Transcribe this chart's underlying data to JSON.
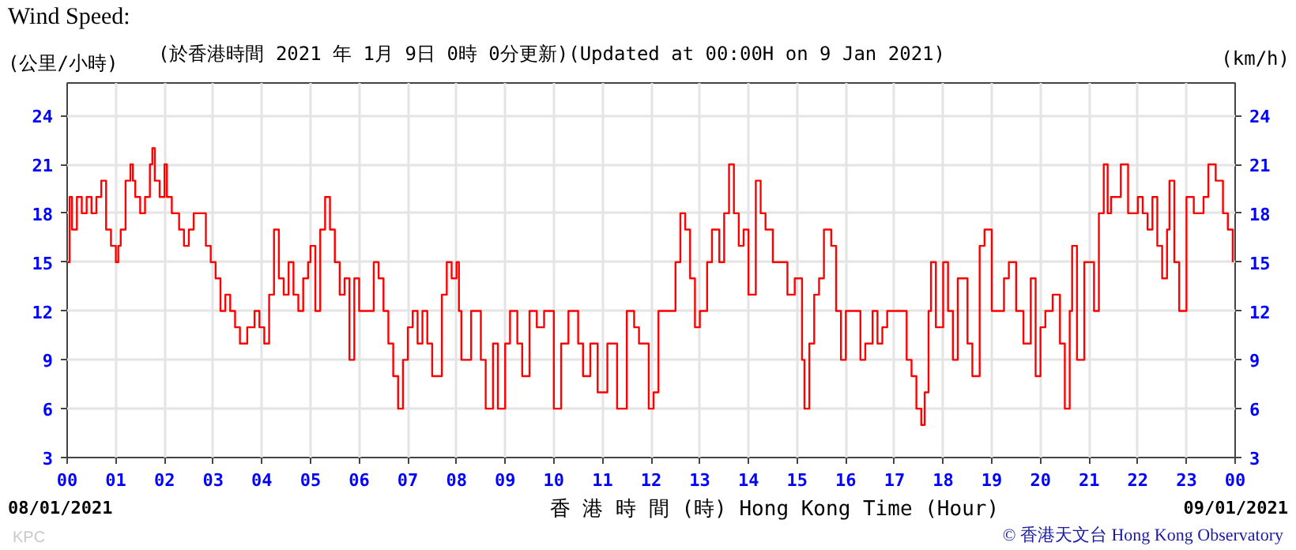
{
  "chart_data": {
    "type": "step",
    "title": "Wind Speed:",
    "subtitle": "(於香港時間 2021 年 1月 9日 0時 0分更新)(Updated at 00:00H on 9 Jan 2021)",
    "ylabel": "(公里/小時)",
    "y2label": "(km/h)",
    "xlabel": "香 港 時 間 (時) Hong Kong Time (Hour)",
    "annotations": [
      "08/01/2021",
      "09/01/2021",
      "© 香港天文台 Hong Kong Observatory",
      "KPC"
    ],
    "x": [
      0,
      0.05,
      0.1,
      0.2,
      0.3,
      0.4,
      0.5,
      0.6,
      0.7,
      0.8,
      0.9,
      1.0,
      1.05,
      1.1,
      1.2,
      1.3,
      1.35,
      1.4,
      1.5,
      1.6,
      1.7,
      1.75,
      1.8,
      1.9,
      2.0,
      2.05,
      2.15,
      2.3,
      2.4,
      2.5,
      2.6,
      2.7,
      2.85,
      2.95,
      3.05,
      3.15,
      3.25,
      3.35,
      3.45,
      3.55,
      3.7,
      3.85,
      3.95,
      4.05,
      4.15,
      4.25,
      4.35,
      4.45,
      4.55,
      4.65,
      4.75,
      4.85,
      4.95,
      5.0,
      5.1,
      5.2,
      5.3,
      5.4,
      5.5,
      5.6,
      5.7,
      5.8,
      5.9,
      6.0,
      6.1,
      6.3,
      6.4,
      6.5,
      6.6,
      6.7,
      6.8,
      6.9,
      7.0,
      7.1,
      7.2,
      7.3,
      7.4,
      7.5,
      7.6,
      7.7,
      7.8,
      7.9,
      8.0,
      8.05,
      8.1,
      8.2,
      8.3,
      8.5,
      8.6,
      8.75,
      8.85,
      9.0,
      9.1,
      9.25,
      9.35,
      9.5,
      9.65,
      9.8,
      10.0,
      10.15,
      10.3,
      10.5,
      10.6,
      10.75,
      10.9,
      11.1,
      11.3,
      11.5,
      11.65,
      11.75,
      11.95,
      12.05,
      12.15,
      12.4,
      12.5,
      12.6,
      12.7,
      12.8,
      12.9,
      13.0,
      13.15,
      13.25,
      13.4,
      13.5,
      13.6,
      13.7,
      13.8,
      13.9,
      14.0,
      14.15,
      14.25,
      14.35,
      14.5,
      14.65,
      14.8,
      14.95,
      15.1,
      15.15,
      15.25,
      15.35,
      15.45,
      15.55,
      15.7,
      15.8,
      15.9,
      16.0,
      16.15,
      16.3,
      16.4,
      16.55,
      16.65,
      16.75,
      16.85,
      17.1,
      17.25,
      17.35,
      17.45,
      17.55,
      17.62,
      17.7,
      17.75,
      17.85,
      18.0,
      18.1,
      18.2,
      18.3,
      18.5,
      18.6,
      18.75,
      18.85,
      19.0,
      19.15,
      19.25,
      19.35,
      19.5,
      19.65,
      19.8,
      19.9,
      20.0,
      20.1,
      20.25,
      20.4,
      20.5,
      20.6,
      20.65,
      20.75,
      20.9,
      21.05,
      21.1,
      21.2,
      21.3,
      21.38,
      21.45,
      21.65,
      21.8,
      22.0,
      22.1,
      22.2,
      22.3,
      22.4,
      22.5,
      22.6,
      22.65,
      22.75,
      22.85,
      23.0,
      23.15,
      23.25,
      23.35,
      23.45,
      23.55,
      23.6,
      23.75,
      23.85,
      23.95
    ],
    "values": [
      15,
      19,
      17,
      19,
      18,
      19,
      18,
      19,
      20,
      17,
      16,
      15,
      16,
      17,
      20,
      21,
      20,
      19,
      18,
      19,
      21,
      22,
      20,
      19,
      21,
      19,
      18,
      17,
      16,
      17,
      18,
      18,
      16,
      15,
      14,
      12,
      13,
      12,
      11,
      10,
      11,
      12,
      11,
      10,
      13,
      17,
      14,
      13,
      15,
      13,
      12,
      14,
      15,
      16,
      12,
      17,
      19,
      17,
      15,
      13,
      14,
      9,
      14,
      12,
      12,
      15,
      14,
      12,
      10,
      8,
      6,
      9,
      11,
      12,
      10,
      12,
      10,
      8,
      8,
      13,
      15,
      14,
      15,
      12,
      9,
      9,
      12,
      9,
      6,
      10,
      6,
      10,
      12,
      10,
      8,
      12,
      11,
      12,
      6,
      10,
      12,
      10,
      8,
      10,
      7,
      10,
      6,
      12,
      11,
      10,
      6,
      7,
      12,
      12,
      15,
      18,
      17,
      14,
      11,
      12,
      15,
      17,
      15,
      18,
      21,
      18,
      16,
      17,
      13,
      20,
      18,
      17,
      15,
      15,
      13,
      14,
      9,
      6,
      10,
      13,
      14,
      17,
      16,
      12,
      9,
      12,
      12,
      9,
      10,
      12,
      10,
      11,
      12,
      12,
      9,
      8,
      6,
      5,
      7,
      12,
      15,
      11,
      15,
      12,
      9,
      14,
      10,
      8,
      16,
      17,
      12,
      12,
      14,
      15,
      12,
      10,
      14,
      8,
      11,
      12,
      13,
      10,
      6,
      12,
      16,
      9,
      15,
      15,
      12,
      18,
      21,
      18,
      19,
      21,
      18,
      19,
      18,
      17,
      19,
      16,
      14,
      17,
      20,
      15,
      12,
      19,
      18,
      18,
      19,
      21,
      21,
      20,
      18,
      17,
      15
    ],
    "color": "#ff0000",
    "xlim": [
      0,
      24
    ],
    "ylim": [
      3,
      26
    ],
    "xticks": [
      {
        "value": 0,
        "label": "00"
      },
      {
        "value": 1,
        "label": "01"
      },
      {
        "value": 2,
        "label": "02"
      },
      {
        "value": 3,
        "label": "03"
      },
      {
        "value": 4,
        "label": "04"
      },
      {
        "value": 5,
        "label": "05"
      },
      {
        "value": 6,
        "label": "06"
      },
      {
        "value": 7,
        "label": "07"
      },
      {
        "value": 8,
        "label": "08"
      },
      {
        "value": 9,
        "label": "09"
      },
      10,
      11,
      12,
      13,
      14,
      15,
      16,
      17,
      18,
      19,
      20,
      21,
      22,
      23,
      {
        "value": 24,
        "label": "00"
      }
    ],
    "yticks": [
      3,
      6,
      9,
      12,
      15,
      18,
      21,
      24
    ],
    "y2lim": [
      3,
      26
    ],
    "y2ticks": [
      3,
      6,
      9,
      12,
      15,
      18,
      21,
      24
    ],
    "grid": true
  }
}
